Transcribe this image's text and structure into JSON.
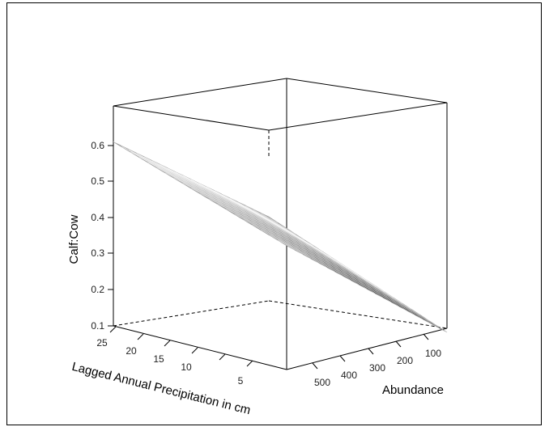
{
  "chart_data": {
    "type": "surface",
    "zlabel": "Calf:Cow",
    "xlabel": "Lagged Annual Precipitation in cm",
    "ylabel": "Abundance",
    "z_ticks": [
      "0.1",
      "0.2",
      "0.3",
      "0.4",
      "0.5",
      "0.6"
    ],
    "x_ticks": [
      "25",
      "20",
      "15",
      "10",
      "5"
    ],
    "y_ticks": [
      "500",
      "400",
      "300",
      "200",
      "100"
    ],
    "zlim": [
      0.1,
      0.65
    ],
    "surface_corners": [
      {
        "precipitation_cm": 25,
        "abundance": 0,
        "calf_cow": 0.31
      },
      {
        "precipitation_cm": 25,
        "abundance": 600,
        "calf_cow": 0.56
      },
      {
        "precipitation_cm": 0,
        "abundance": 0,
        "calf_cow": 0.09
      },
      {
        "precipitation_cm": 0,
        "abundance": 600,
        "calf_cow": 0.41
      }
    ],
    "grid": true,
    "colors": {
      "surface_light": "#d9d9d9",
      "surface_dark": "#2e2e2e",
      "box_line": "#000000"
    }
  }
}
